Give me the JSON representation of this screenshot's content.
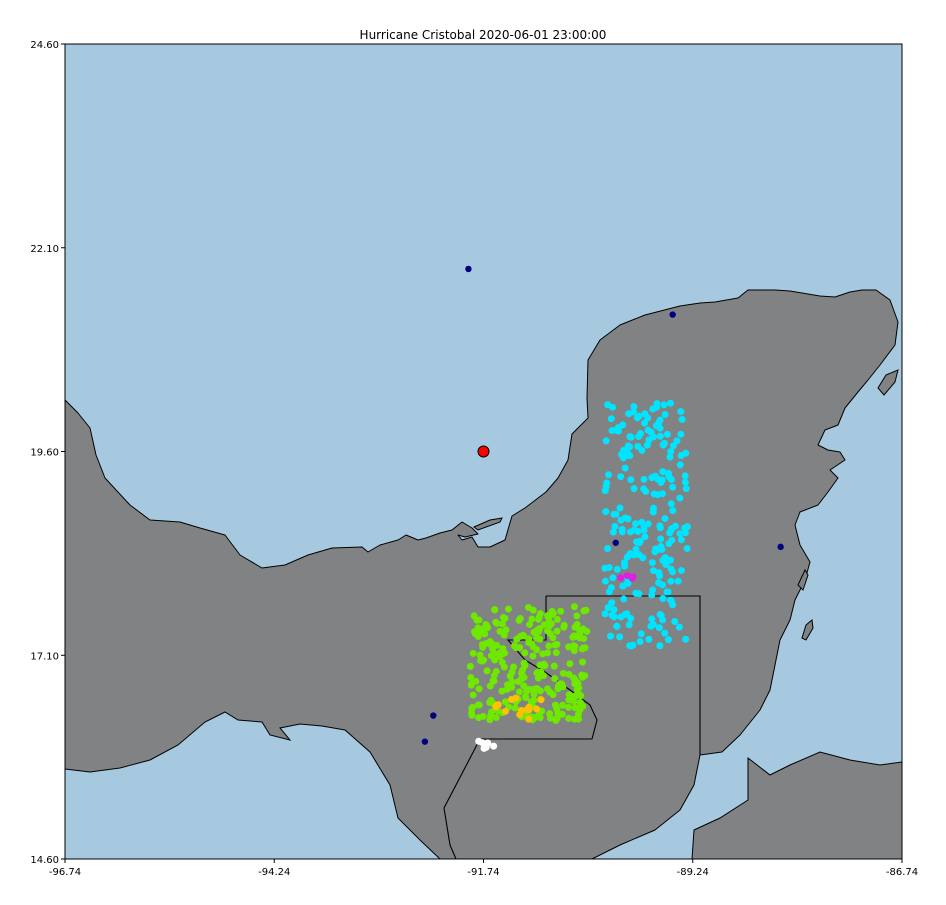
{
  "title": "Hurricane Cristobal 2020-06-01 23:00:00",
  "colors": {
    "water": "#a6c9df",
    "land": "#808284",
    "border": "#000000",
    "storm_center": "#ff0000"
  },
  "map": {
    "lon_range": [
      -96.74,
      -86.74
    ],
    "lat_range": [
      14.6,
      24.6
    ],
    "x_tick_labels": [
      "-96.74",
      "-94.24",
      "-91.74",
      "-89.24",
      "-86.74"
    ],
    "y_tick_labels": [
      "24.60",
      "22.10",
      "19.60",
      "17.10",
      "14.60"
    ],
    "x_ticks": [
      -96.74,
      -94.24,
      -91.74,
      -89.24,
      -86.74
    ],
    "y_ticks": [
      24.6,
      22.1,
      19.6,
      17.1,
      14.6
    ]
  },
  "storm_center": {
    "lon": -91.74,
    "lat": 19.6
  },
  "chart_data": {
    "type": "scatter",
    "title": "Hurricane Cristobal 2020-06-01 23:00:00",
    "xlim": [
      -96.74,
      -86.74
    ],
    "ylim": [
      14.6,
      24.6
    ],
    "clusters": [
      {
        "color": "#00e5ff",
        "lon_range": [
          -90.3,
          -89.3
        ],
        "lat_range": [
          17.2,
          20.2
        ]
      },
      {
        "color": "#6fe800",
        "lon_range": [
          -91.9,
          -90.5
        ],
        "lat_range": [
          16.3,
          17.7
        ]
      },
      {
        "color": "#ffc000",
        "lon_range": [
          -91.6,
          -91.0
        ],
        "lat_range": [
          16.3,
          16.6
        ]
      },
      {
        "color": "#ffffff",
        "lon_range": [
          -91.85,
          -91.6
        ],
        "lat_range": [
          15.95,
          16.05
        ]
      },
      {
        "color": "#e020e0",
        "lon_range": [
          -90.2,
          -89.9
        ],
        "lat_range": [
          18.0,
          18.1
        ]
      }
    ],
    "points": [
      {
        "lon": -91.92,
        "lat": 21.84,
        "color": "#000080"
      },
      {
        "lon": -89.48,
        "lat": 21.28,
        "color": "#000080"
      },
      {
        "lon": -90.16,
        "lat": 18.48,
        "color": "#000080"
      },
      {
        "lon": -88.19,
        "lat": 18.43,
        "color": "#000080"
      },
      {
        "lon": -92.34,
        "lat": 16.36,
        "color": "#000080"
      },
      {
        "lon": -92.44,
        "lat": 16.04,
        "color": "#000080"
      }
    ]
  }
}
